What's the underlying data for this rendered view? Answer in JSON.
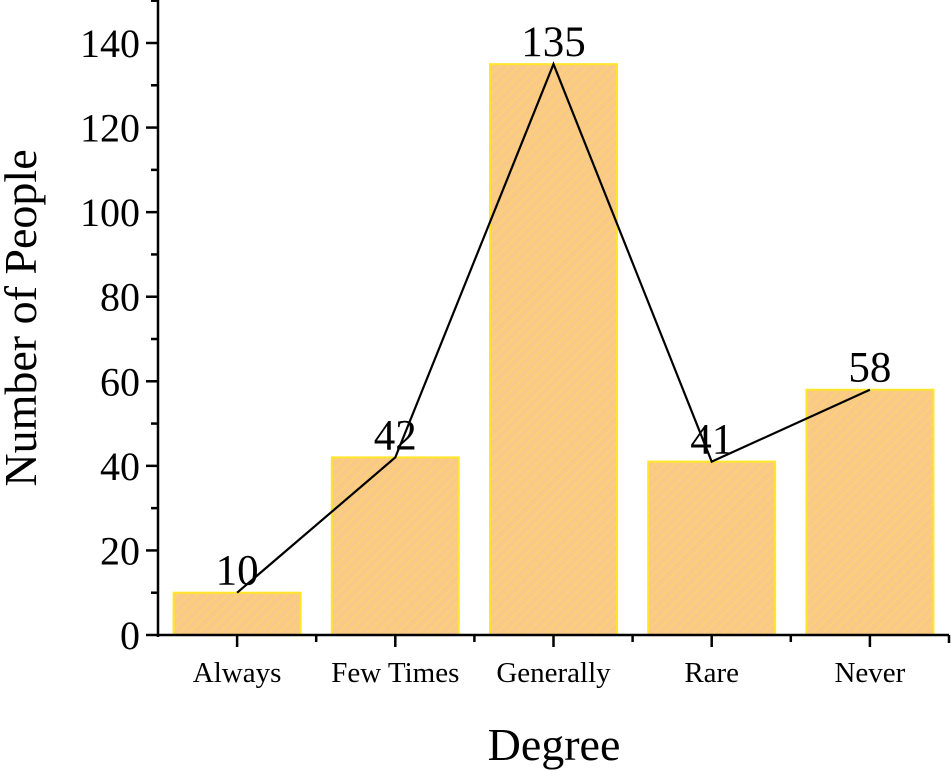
{
  "chart_data": {
    "type": "bar",
    "title": "",
    "xlabel": "Degree",
    "ylabel": "Number of People",
    "categories": [
      "Always",
      "Few Times",
      "Generally",
      "Rare",
      "Never"
    ],
    "values": [
      10,
      42,
      135,
      41,
      58
    ],
    "data_labels": [
      "10",
      "42",
      "135",
      "41",
      "58"
    ],
    "overlay_line": {
      "type": "line",
      "values": [
        10,
        42,
        135,
        41,
        58
      ],
      "color": "#000000"
    },
    "ylim": [
      0,
      150
    ],
    "yticks": [
      0,
      20,
      40,
      60,
      80,
      100,
      120,
      140
    ],
    "ytick_labels": [
      "0",
      "20",
      "40",
      "60",
      "80",
      "100",
      "120",
      "140"
    ],
    "grid": false,
    "legend": null,
    "colors": {
      "bar_fill": "#F9C98A",
      "bar_hatch": "#FFD36B",
      "bar_edge": "#FFE629",
      "line": "#000000",
      "axis": "#000000"
    }
  }
}
